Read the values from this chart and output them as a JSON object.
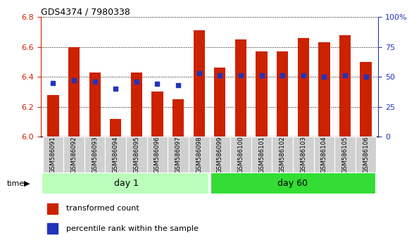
{
  "title": "GDS4374 / 7980338",
  "categories": [
    "GSM586091",
    "GSM586092",
    "GSM586093",
    "GSM586094",
    "GSM586095",
    "GSM586096",
    "GSM586097",
    "GSM586098",
    "GSM586099",
    "GSM586100",
    "GSM586101",
    "GSM586102",
    "GSM586103",
    "GSM586104",
    "GSM586105",
    "GSM586106"
  ],
  "red_values": [
    6.28,
    6.6,
    6.43,
    6.12,
    6.43,
    6.3,
    6.25,
    6.71,
    6.46,
    6.65,
    6.57,
    6.57,
    6.66,
    6.63,
    6.68,
    6.5
  ],
  "blue_percentiles": [
    45,
    47,
    46,
    40,
    46,
    44,
    43,
    53,
    51,
    51,
    51,
    51,
    51,
    50,
    51,
    50
  ],
  "ylim_left": [
    6.0,
    6.8
  ],
  "ylim_right": [
    0,
    100
  ],
  "yticks_left": [
    6.0,
    6.2,
    6.4,
    6.6,
    6.8
  ],
  "yticks_right": [
    0,
    25,
    50,
    75,
    100
  ],
  "ytick_labels_right": [
    "0",
    "25",
    "50",
    "75",
    "100%"
  ],
  "bar_color": "#cc2200",
  "blue_color": "#2233bb",
  "day1_color": "#bbffbb",
  "day60_color": "#33dd33",
  "group_label_day1": "day 1",
  "group_label_day60": "day 60",
  "time_label": "time",
  "legend_red": "transformed count",
  "legend_blue": "percentile rank within the sample",
  "bar_width": 0.55,
  "blue_marker_size": 5,
  "background_color": "#ffffff",
  "tick_color_left": "#cc2200",
  "tick_color_right": "#2233bb",
  "n_day1": 8,
  "n_day2": 8
}
